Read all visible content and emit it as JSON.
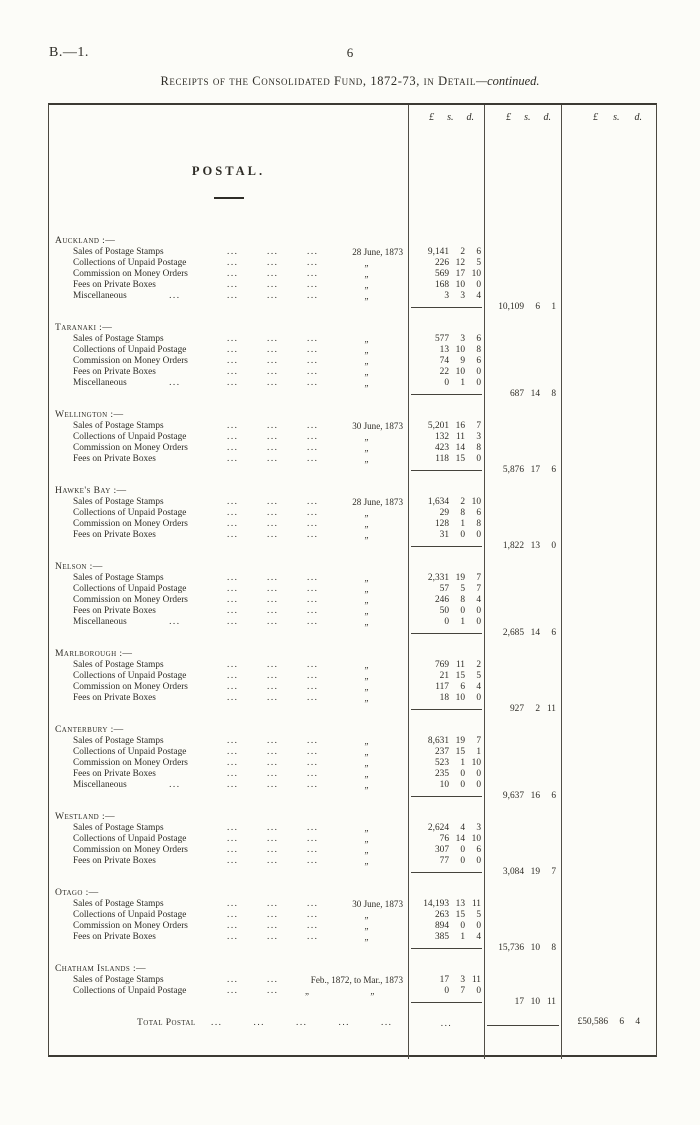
{
  "page": {
    "doc_ref": "B.—1.",
    "page_number": "6"
  },
  "title": {
    "main": "Receipts of the Consolidated Fund, 1872-73, in Detail",
    "continued": "—continued."
  },
  "colors": {
    "ink": "#2e2c26",
    "paper": "#fcfcf8",
    "rule": "#3c3a33"
  },
  "table": {
    "money_header": {
      "pound": "£",
      "shillings": "s.",
      "pence": "d."
    },
    "section_title": "POSTAL.",
    "leader_dots": "...",
    "ditto": "„",
    "sections": [
      {
        "name": "Auckland :—",
        "items": [
          {
            "label": "Sales of Postage Stamps",
            "dots": 3,
            "date": "28 June, 1873",
            "amount": {
              "pounds": "9,141",
              "s": "2",
              "d": "6"
            }
          },
          {
            "label": "Collections of Unpaid Postage",
            "dots": 3,
            "date": "„",
            "amount": {
              "pounds": "226",
              "s": "12",
              "d": "5"
            }
          },
          {
            "label": "Commission on Money Orders",
            "dots": 3,
            "date": "„",
            "amount": {
              "pounds": "569",
              "s": "17",
              "d": "10"
            }
          },
          {
            "label": "Fees on Private Boxes",
            "dots": 3,
            "date": "„",
            "amount": {
              "pounds": "168",
              "s": "10",
              "d": "0"
            }
          },
          {
            "label": "Miscellaneous",
            "dots": 3,
            "extra_dots": true,
            "date": "„",
            "amount": {
              "pounds": "3",
              "s": "3",
              "d": "4"
            }
          }
        ],
        "subtotal": {
          "pounds": "10,109",
          "s": "6",
          "d": "1"
        }
      },
      {
        "name": "Taranaki :—",
        "items": [
          {
            "label": "Sales of Postage Stamps",
            "dots": 3,
            "date": "„",
            "amount": {
              "pounds": "577",
              "s": "3",
              "d": "6"
            }
          },
          {
            "label": "Collections of Unpaid Postage",
            "dots": 3,
            "date": "„",
            "amount": {
              "pounds": "13",
              "s": "10",
              "d": "8"
            }
          },
          {
            "label": "Commission on Money Orders",
            "dots": 3,
            "date": "„",
            "amount": {
              "pounds": "74",
              "s": "9",
              "d": "6"
            }
          },
          {
            "label": "Fees on Private Boxes",
            "dots": 3,
            "date": "„",
            "amount": {
              "pounds": "22",
              "s": "10",
              "d": "0"
            }
          },
          {
            "label": "Miscellaneous",
            "dots": 3,
            "extra_dots": true,
            "date": "„",
            "amount": {
              "pounds": "0",
              "s": "1",
              "d": "0"
            }
          }
        ],
        "subtotal": {
          "pounds": "687",
          "s": "14",
          "d": "8"
        }
      },
      {
        "name": "Wellington :—",
        "items": [
          {
            "label": "Sales of Postage Stamps",
            "dots": 3,
            "date": "30 June, 1873",
            "amount": {
              "pounds": "5,201",
              "s": "16",
              "d": "7"
            }
          },
          {
            "label": "Collections of Unpaid Postage",
            "dots": 3,
            "date": "„",
            "amount": {
              "pounds": "132",
              "s": "11",
              "d": "3"
            }
          },
          {
            "label": "Commission on Money Orders",
            "dots": 3,
            "date": "„",
            "amount": {
              "pounds": "423",
              "s": "14",
              "d": "8"
            }
          },
          {
            "label": "Fees on Private Boxes",
            "dots": 3,
            "date": "„",
            "amount": {
              "pounds": "118",
              "s": "15",
              "d": "0"
            }
          }
        ],
        "subtotal": {
          "pounds": "5,876",
          "s": "17",
          "d": "6"
        }
      },
      {
        "name": "Hawke's Bay :—",
        "items": [
          {
            "label": "Sales of Postage Stamps",
            "dots": 3,
            "date": "28 June, 1873",
            "amount": {
              "pounds": "1,634",
              "s": "2",
              "d": "10"
            }
          },
          {
            "label": "Collections of Unpaid Postage",
            "dots": 3,
            "date": "„",
            "amount": {
              "pounds": "29",
              "s": "8",
              "d": "6"
            }
          },
          {
            "label": "Commission on Money Orders",
            "dots": 3,
            "date": "„",
            "amount": {
              "pounds": "128",
              "s": "1",
              "d": "8"
            }
          },
          {
            "label": "Fees on Private Boxes",
            "dots": 3,
            "date": "„",
            "amount": {
              "pounds": "31",
              "s": "0",
              "d": "0"
            }
          }
        ],
        "subtotal": {
          "pounds": "1,822",
          "s": "13",
          "d": "0"
        }
      },
      {
        "name": "Nelson :—",
        "items": [
          {
            "label": "Sales of Postage Stamps",
            "dots": 3,
            "date": "„",
            "amount": {
              "pounds": "2,331",
              "s": "19",
              "d": "7"
            }
          },
          {
            "label": "Collections of Unpaid Postage",
            "dots": 3,
            "date": "„",
            "amount": {
              "pounds": "57",
              "s": "5",
              "d": "7"
            }
          },
          {
            "label": "Commission on Money Orders",
            "dots": 3,
            "date": "„",
            "amount": {
              "pounds": "246",
              "s": "8",
              "d": "4"
            }
          },
          {
            "label": "Fees on Private Boxes",
            "dots": 3,
            "date": "„",
            "amount": {
              "pounds": "50",
              "s": "0",
              "d": "0"
            }
          },
          {
            "label": "Miscellaneous",
            "dots": 3,
            "extra_dots": true,
            "date": "„",
            "amount": {
              "pounds": "0",
              "s": "1",
              "d": "0"
            }
          }
        ],
        "subtotal": {
          "pounds": "2,685",
          "s": "14",
          "d": "6"
        }
      },
      {
        "name": "Marlborough :—",
        "items": [
          {
            "label": "Sales of Postage Stamps",
            "dots": 3,
            "date": "„",
            "amount": {
              "pounds": "769",
              "s": "11",
              "d": "2"
            }
          },
          {
            "label": "Collections of Unpaid Postage",
            "dots": 3,
            "date": "„",
            "amount": {
              "pounds": "21",
              "s": "15",
              "d": "5"
            }
          },
          {
            "label": "Commission on Money Orders",
            "dots": 3,
            "date": "„",
            "amount": {
              "pounds": "117",
              "s": "6",
              "d": "4"
            }
          },
          {
            "label": "Fees on Private Boxes",
            "dots": 3,
            "date": "„",
            "amount": {
              "pounds": "18",
              "s": "10",
              "d": "0"
            }
          }
        ],
        "subtotal": {
          "pounds": "927",
          "s": "2",
          "d": "11"
        }
      },
      {
        "name": "Canterbury :—",
        "items": [
          {
            "label": "Sales of Postage Stamps",
            "dots": 3,
            "date": "„",
            "amount": {
              "pounds": "8,631",
              "s": "19",
              "d": "7"
            }
          },
          {
            "label": "Collections of Unpaid Postage",
            "dots": 3,
            "date": "„",
            "amount": {
              "pounds": "237",
              "s": "15",
              "d": "1"
            }
          },
          {
            "label": "Commission on Money Orders",
            "dots": 3,
            "date": "„",
            "amount": {
              "pounds": "523",
              "s": "1",
              "d": "10"
            }
          },
          {
            "label": "Fees on Private Boxes",
            "dots": 3,
            "date": "„",
            "amount": {
              "pounds": "235",
              "s": "0",
              "d": "0"
            }
          },
          {
            "label": "Miscellaneous",
            "dots": 3,
            "extra_dots": true,
            "date": "„",
            "amount": {
              "pounds": "10",
              "s": "0",
              "d": "0"
            }
          }
        ],
        "subtotal": {
          "pounds": "9,637",
          "s": "16",
          "d": "6"
        }
      },
      {
        "name": "Westland :—",
        "items": [
          {
            "label": "Sales of Postage Stamps",
            "dots": 3,
            "date": "„",
            "amount": {
              "pounds": "2,624",
              "s": "4",
              "d": "3"
            }
          },
          {
            "label": "Collections of Unpaid Postage",
            "dots": 3,
            "date": "„",
            "amount": {
              "pounds": "76",
              "s": "14",
              "d": "10"
            }
          },
          {
            "label": "Commission on Money Orders",
            "dots": 3,
            "date": "„",
            "amount": {
              "pounds": "307",
              "s": "0",
              "d": "6"
            }
          },
          {
            "label": "Fees on Private Boxes",
            "dots": 3,
            "date": "„",
            "amount": {
              "pounds": "77",
              "s": "0",
              "d": "0"
            }
          }
        ],
        "subtotal": {
          "pounds": "3,084",
          "s": "19",
          "d": "7"
        }
      },
      {
        "name": "Otago :—",
        "items": [
          {
            "label": "Sales of Postage Stamps",
            "dots": 3,
            "date": "30 June, 1873",
            "amount": {
              "pounds": "14,193",
              "s": "13",
              "d": "11"
            }
          },
          {
            "label": "Collections of Unpaid Postage",
            "dots": 3,
            "date": "„",
            "amount": {
              "pounds": "263",
              "s": "15",
              "d": "5"
            }
          },
          {
            "label": "Commission on Money Orders",
            "dots": 3,
            "date": "„",
            "amount": {
              "pounds": "894",
              "s": "0",
              "d": "0"
            }
          },
          {
            "label": "Fees on Private Boxes",
            "dots": 3,
            "date": "„",
            "amount": {
              "pounds": "385",
              "s": "1",
              "d": "4"
            }
          }
        ],
        "subtotal": {
          "pounds": "15,736",
          "s": "10",
          "d": "8"
        }
      },
      {
        "name": "Chatham Islands :—",
        "items": [
          {
            "label": "Sales of Postage Stamps",
            "dots": 2,
            "wide": true,
            "date": "Feb., 1872, to Mar., 1873",
            "amount": {
              "pounds": "17",
              "s": "3",
              "d": "11"
            }
          },
          {
            "label": "Collections of Unpaid Postage",
            "dots": 2,
            "wide": true,
            "date": "„ „",
            "amount": {
              "pounds": "0",
              "s": "7",
              "d": "0"
            }
          }
        ],
        "subtotal": {
          "pounds": "17",
          "s": "10",
          "d": "11"
        }
      }
    ],
    "total_row": {
      "label": "Total Postal",
      "dots_count": 5,
      "col1_dots": "...",
      "amount": {
        "pounds": "£50,586",
        "s": "6",
        "d": "4"
      }
    }
  }
}
